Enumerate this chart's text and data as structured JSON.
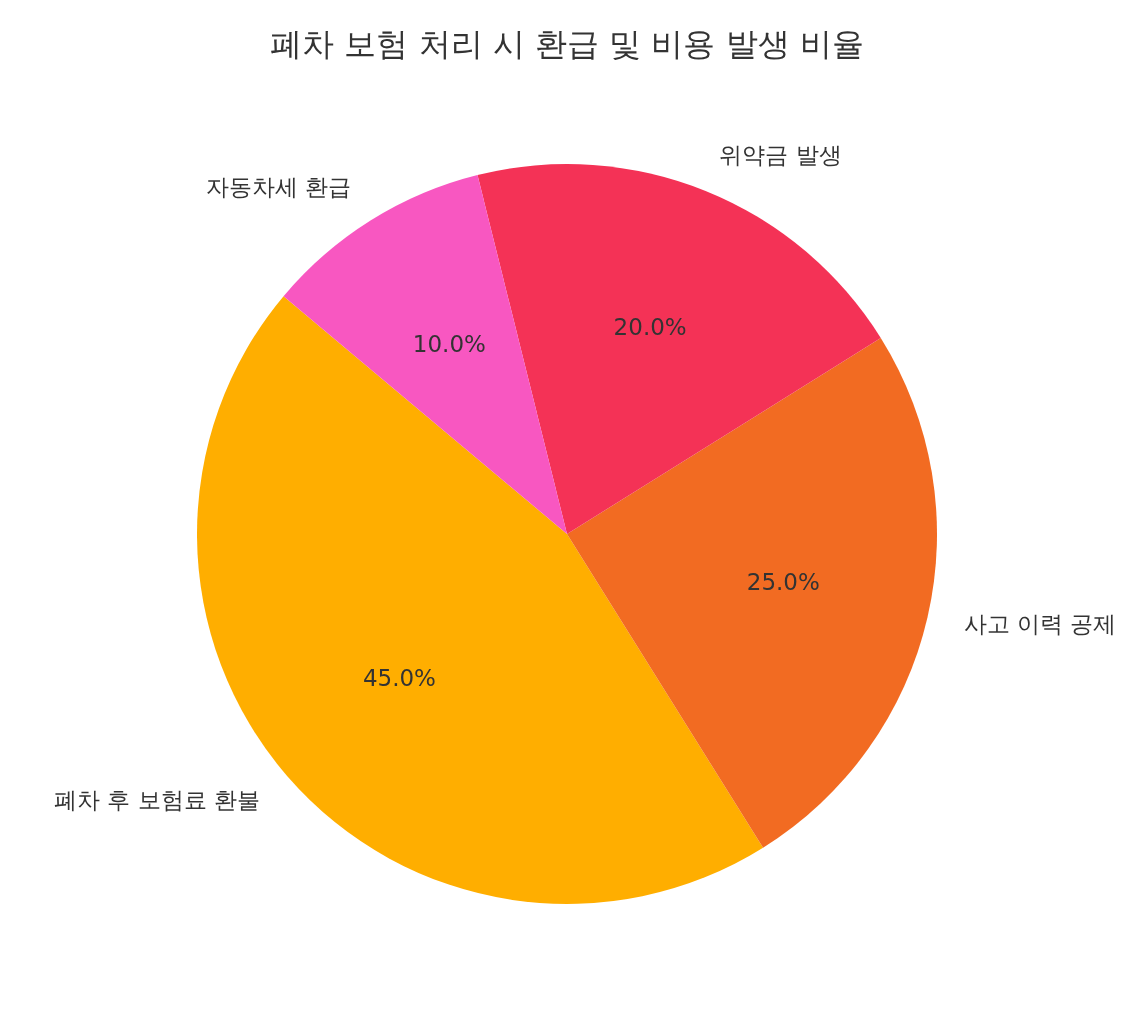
{
  "chart_data": {
    "type": "pie",
    "title": "폐차 보험 처리 시 환급 및 비용 발생 비율",
    "categories": [
      "폐차 후 보험료 환불",
      "사고 이력 공제",
      "위약금 발생",
      "자동차세 환급"
    ],
    "values": [
      45,
      25,
      20,
      10
    ],
    "colors": [
      "#ffae00",
      "#f26b22",
      "#f43256",
      "#f857c1"
    ],
    "value_labels": [
      "45.0%",
      "25.0%",
      "20.0%",
      "10.0%"
    ]
  }
}
